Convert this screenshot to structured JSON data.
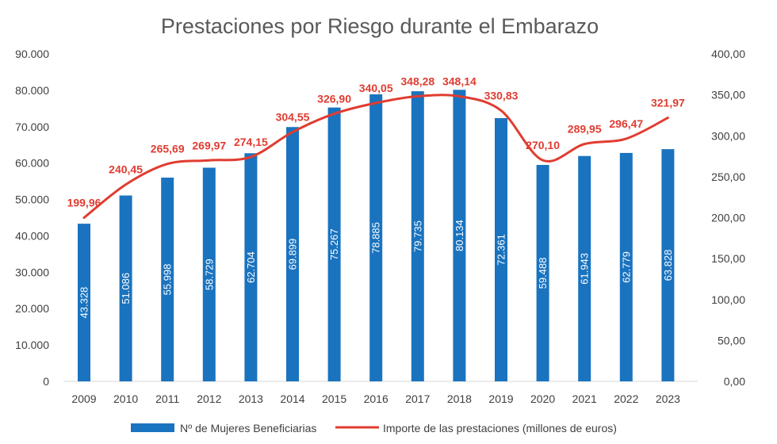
{
  "chart_data": {
    "type": "bar+line",
    "title": "Prestaciones por Riesgo durante el Embarazo",
    "categories": [
      "2009",
      "2010",
      "2011",
      "2012",
      "2013",
      "2014",
      "2015",
      "2016",
      "2017",
      "2018",
      "2019",
      "2020",
      "2021",
      "2022",
      "2023"
    ],
    "series": [
      {
        "name": "Nº de Mujeres Beneficiarias",
        "type": "bar",
        "axis": "left",
        "color": "#1a73bf",
        "values": [
          43328,
          51086,
          55998,
          58729,
          62704,
          69899,
          75267,
          78885,
          79735,
          80134,
          72361,
          59488,
          61943,
          62779,
          63828
        ],
        "labels": [
          "43.328",
          "51.086",
          "55.998",
          "58.729",
          "62.704",
          "69.899",
          "75.267",
          "78.885",
          "79.735",
          "80.134",
          "72.361",
          "59.488",
          "61.943",
          "62.779",
          "63.828"
        ]
      },
      {
        "name": "Importe de las prestaciones (millones de euros)",
        "type": "line",
        "axis": "right",
        "color": "#e03c31",
        "values": [
          199.96,
          240.45,
          265.69,
          269.97,
          274.15,
          304.55,
          326.9,
          340.05,
          348.28,
          348.14,
          330.83,
          270.1,
          289.95,
          296.47,
          321.97
        ],
        "labels": [
          "199,96",
          "240,45",
          "265,69",
          "269,97",
          "274,15",
          "304,55",
          "326,90",
          "340,05",
          "348,28",
          "348,14",
          "330,83",
          "270,10",
          "289,95",
          "296,47",
          "321,97"
        ]
      }
    ],
    "y_left": {
      "range": [
        0,
        90000
      ],
      "ticks": [
        0,
        10000,
        20000,
        30000,
        40000,
        50000,
        60000,
        70000,
        80000,
        90000
      ],
      "tick_labels": [
        "0",
        "10.000",
        "20.000",
        "30.000",
        "40.000",
        "50.000",
        "60.000",
        "70.000",
        "80.000",
        "90.000"
      ]
    },
    "y_right": {
      "range": [
        0,
        400
      ],
      "ticks": [
        0,
        50,
        100,
        150,
        200,
        250,
        300,
        350,
        400
      ],
      "tick_labels": [
        "0,00",
        "50,00",
        "100,00",
        "150,00",
        "200,00",
        "250,00",
        "300,00",
        "350,00",
        "400,00"
      ]
    },
    "grid": false,
    "legend_position": "bottom"
  }
}
